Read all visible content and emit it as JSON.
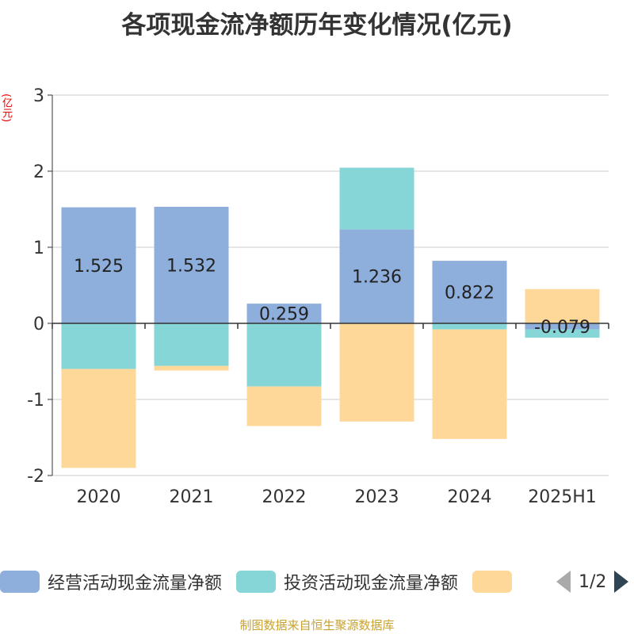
{
  "chart_data": {
    "type": "bar",
    "stacked": true,
    "title": "各项现金流净额历年变化情况(亿元)",
    "ylabel": "(亿元)",
    "categories": [
      "2020",
      "2021",
      "2022",
      "2023",
      "2024",
      "2025H1"
    ],
    "ylim": [
      -2,
      3
    ],
    "yticks": [
      3,
      2,
      1,
      0,
      -1,
      -2
    ],
    "grid": true,
    "legend_position": "bottom",
    "series": [
      {
        "name": "经营活动现金流量净额",
        "color": "#8eaedb",
        "values": [
          1.525,
          1.532,
          0.259,
          1.236,
          0.822,
          -0.079
        ],
        "labels": [
          "1.525",
          "1.532",
          "0.259",
          "1.236",
          "0.822",
          "-0.079"
        ]
      },
      {
        "name": "投资活动现金流量净额",
        "color": "#86d5d7",
        "values": [
          -0.6,
          -0.56,
          -0.83,
          0.81,
          -0.08,
          -0.11
        ],
        "labels": []
      },
      {
        "name": "",
        "color": "#fed898",
        "values": [
          -1.3,
          -0.06,
          -0.52,
          -1.29,
          -1.44,
          0.45
        ],
        "labels": []
      }
    ]
  },
  "legend": {
    "page": "1/2"
  },
  "source_note": "制图数据来自恒生聚源数据库"
}
